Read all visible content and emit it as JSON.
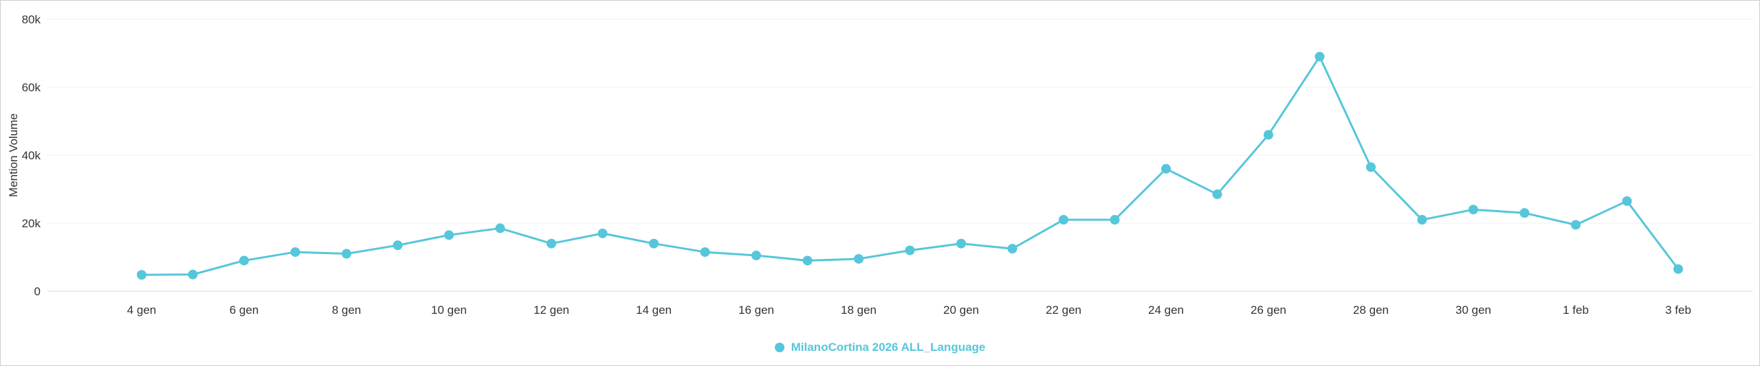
{
  "chart_data": {
    "type": "line",
    "title": "",
    "xlabel": "",
    "ylabel": "Mention Volume",
    "ylim": [
      0,
      80000
    ],
    "yticks": [
      0,
      20000,
      40000,
      60000,
      80000
    ],
    "ytick_labels": [
      "0",
      "20k",
      "40k",
      "60k",
      "80k"
    ],
    "x": [
      "4 gen",
      "5 gen",
      "6 gen",
      "7 gen",
      "8 gen",
      "9 gen",
      "10 gen",
      "11 gen",
      "12 gen",
      "13 gen",
      "14 gen",
      "15 gen",
      "16 gen",
      "17 gen",
      "18 gen",
      "19 gen",
      "20 gen",
      "21 gen",
      "22 gen",
      "23 gen",
      "24 gen",
      "25 gen",
      "26 gen",
      "27 gen",
      "28 gen",
      "29 gen",
      "30 gen",
      "31 gen",
      "1 feb",
      "2 feb",
      "3 feb"
    ],
    "x_tick_step": 2,
    "x_tick_labels_shown": [
      "4 gen",
      "6 gen",
      "8 gen",
      "10 gen",
      "12 gen",
      "14 gen",
      "16 gen",
      "18 gen",
      "20 gen",
      "22 gen",
      "24 gen",
      "26 gen",
      "28 gen",
      "30 gen",
      "1 feb",
      "3 feb"
    ],
    "grid": true,
    "legend_position": "bottom",
    "series": [
      {
        "name": "MilanoCortina 2026 ALL_Language",
        "color": "#56c6da",
        "values": [
          4800,
          4900,
          9000,
          11500,
          11000,
          13500,
          16500,
          18500,
          14000,
          17000,
          14000,
          11500,
          10500,
          9000,
          9500,
          12000,
          14000,
          12500,
          21000,
          21000,
          36000,
          28500,
          46000,
          69000,
          36500,
          21000,
          24000,
          23000,
          19500,
          26500,
          6500
        ]
      }
    ]
  },
  "colors": {
    "axis_text": "#333333",
    "gridline": "#efefef",
    "zero_line": "#d9d9d9",
    "background": "#ffffff"
  }
}
